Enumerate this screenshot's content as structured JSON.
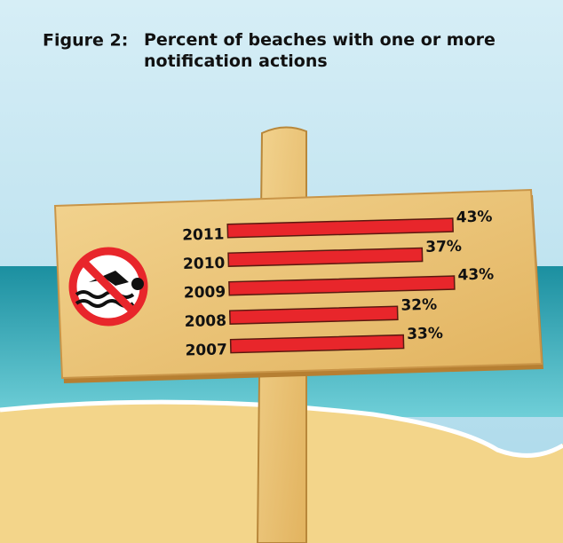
{
  "chart_data": {
    "type": "bar",
    "orientation": "horizontal",
    "figure_label": "Figure 2:",
    "title": "Percent of beaches with one or more notification actions",
    "categories": [
      "2011",
      "2010",
      "2009",
      "2008",
      "2007"
    ],
    "values": [
      43,
      37,
      43,
      32,
      33
    ],
    "value_labels": [
      "43%",
      "37%",
      "43%",
      "32%",
      "33%"
    ],
    "color": "#e8262b"
  }
}
